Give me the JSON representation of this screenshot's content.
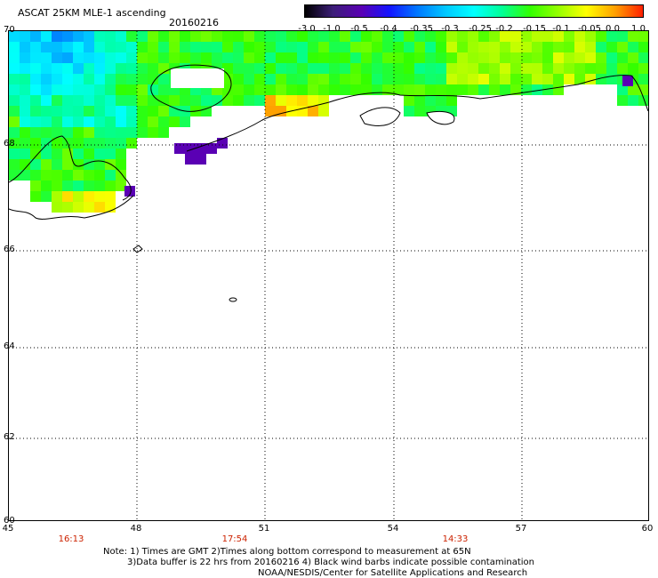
{
  "header": {
    "title": "ASCAT 25KM MLE-1 ascending",
    "date": "20160216"
  },
  "colorbar": {
    "tick_labels": [
      "-3.0",
      "-1.0",
      "-0.5",
      "-0.4",
      "-0.35",
      "-0.3",
      "-0.25",
      "-0.2",
      "-0.15",
      "-0.1",
      "-0.05",
      "0.0",
      "1.0"
    ],
    "colors": [
      "#000000",
      "#3c1e78",
      "#5a00b4",
      "#1414ff",
      "#0078ff",
      "#00c8ff",
      "#00ffff",
      "#00ff96",
      "#32ff00",
      "#96ff00",
      "#ffff00",
      "#ffa000",
      "#ff2000"
    ]
  },
  "map": {
    "lat_labels": [
      "70",
      "68",
      "66",
      "64",
      "62",
      "60"
    ],
    "lon_labels": [
      "45",
      "48",
      "51",
      "54",
      "57",
      "60"
    ],
    "time_labels": [
      "16:13",
      "17:54",
      "14:33"
    ],
    "time_color": "#cc2200",
    "grid": "dotted",
    "no_data_color": "#ffffff"
  },
  "footer": {
    "note_line1": "Note: 1) Times are GMT 2)Times along bottom correspond to measurement at 65N",
    "note_line2": "3)Data buffer is 22 hrs from 20160216 4) Black wind barbs indicate possible contamination",
    "credit": "NOAA/NESDIS/Center for Satellite Applications and Research"
  }
}
